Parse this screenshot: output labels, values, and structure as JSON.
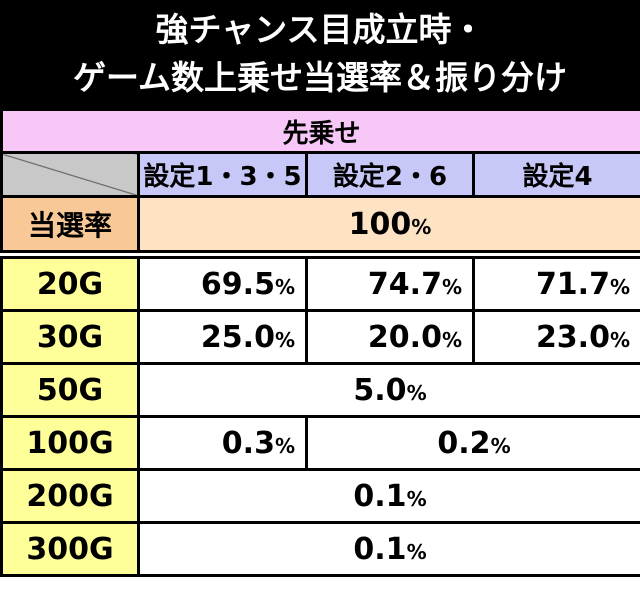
{
  "header": {
    "title_lines": [
      "強チャンス目成立時・",
      "ゲーム数上乗せ当選率＆振り分け"
    ]
  },
  "table": {
    "section": "先乗せ",
    "columns": [
      "設定1・3・5",
      "設定2・6",
      "設定4"
    ],
    "hit_rate": {
      "label": "当選率",
      "value": "100%"
    },
    "rows": [
      {
        "label": "20G",
        "cells": [
          "69.5%",
          "74.7%",
          "71.7%"
        ]
      },
      {
        "label": "30G",
        "cells": [
          "25.0%",
          "20.0%",
          "23.0%"
        ]
      },
      {
        "label": "50G",
        "cells": [
          "5.0%"
        ]
      },
      {
        "label": "100G",
        "cells": [
          "0.3%",
          "0.2%"
        ]
      },
      {
        "label": "200G",
        "cells": [
          "0.1%"
        ]
      },
      {
        "label": "300G",
        "cells": [
          "0.1%"
        ]
      }
    ]
  }
}
